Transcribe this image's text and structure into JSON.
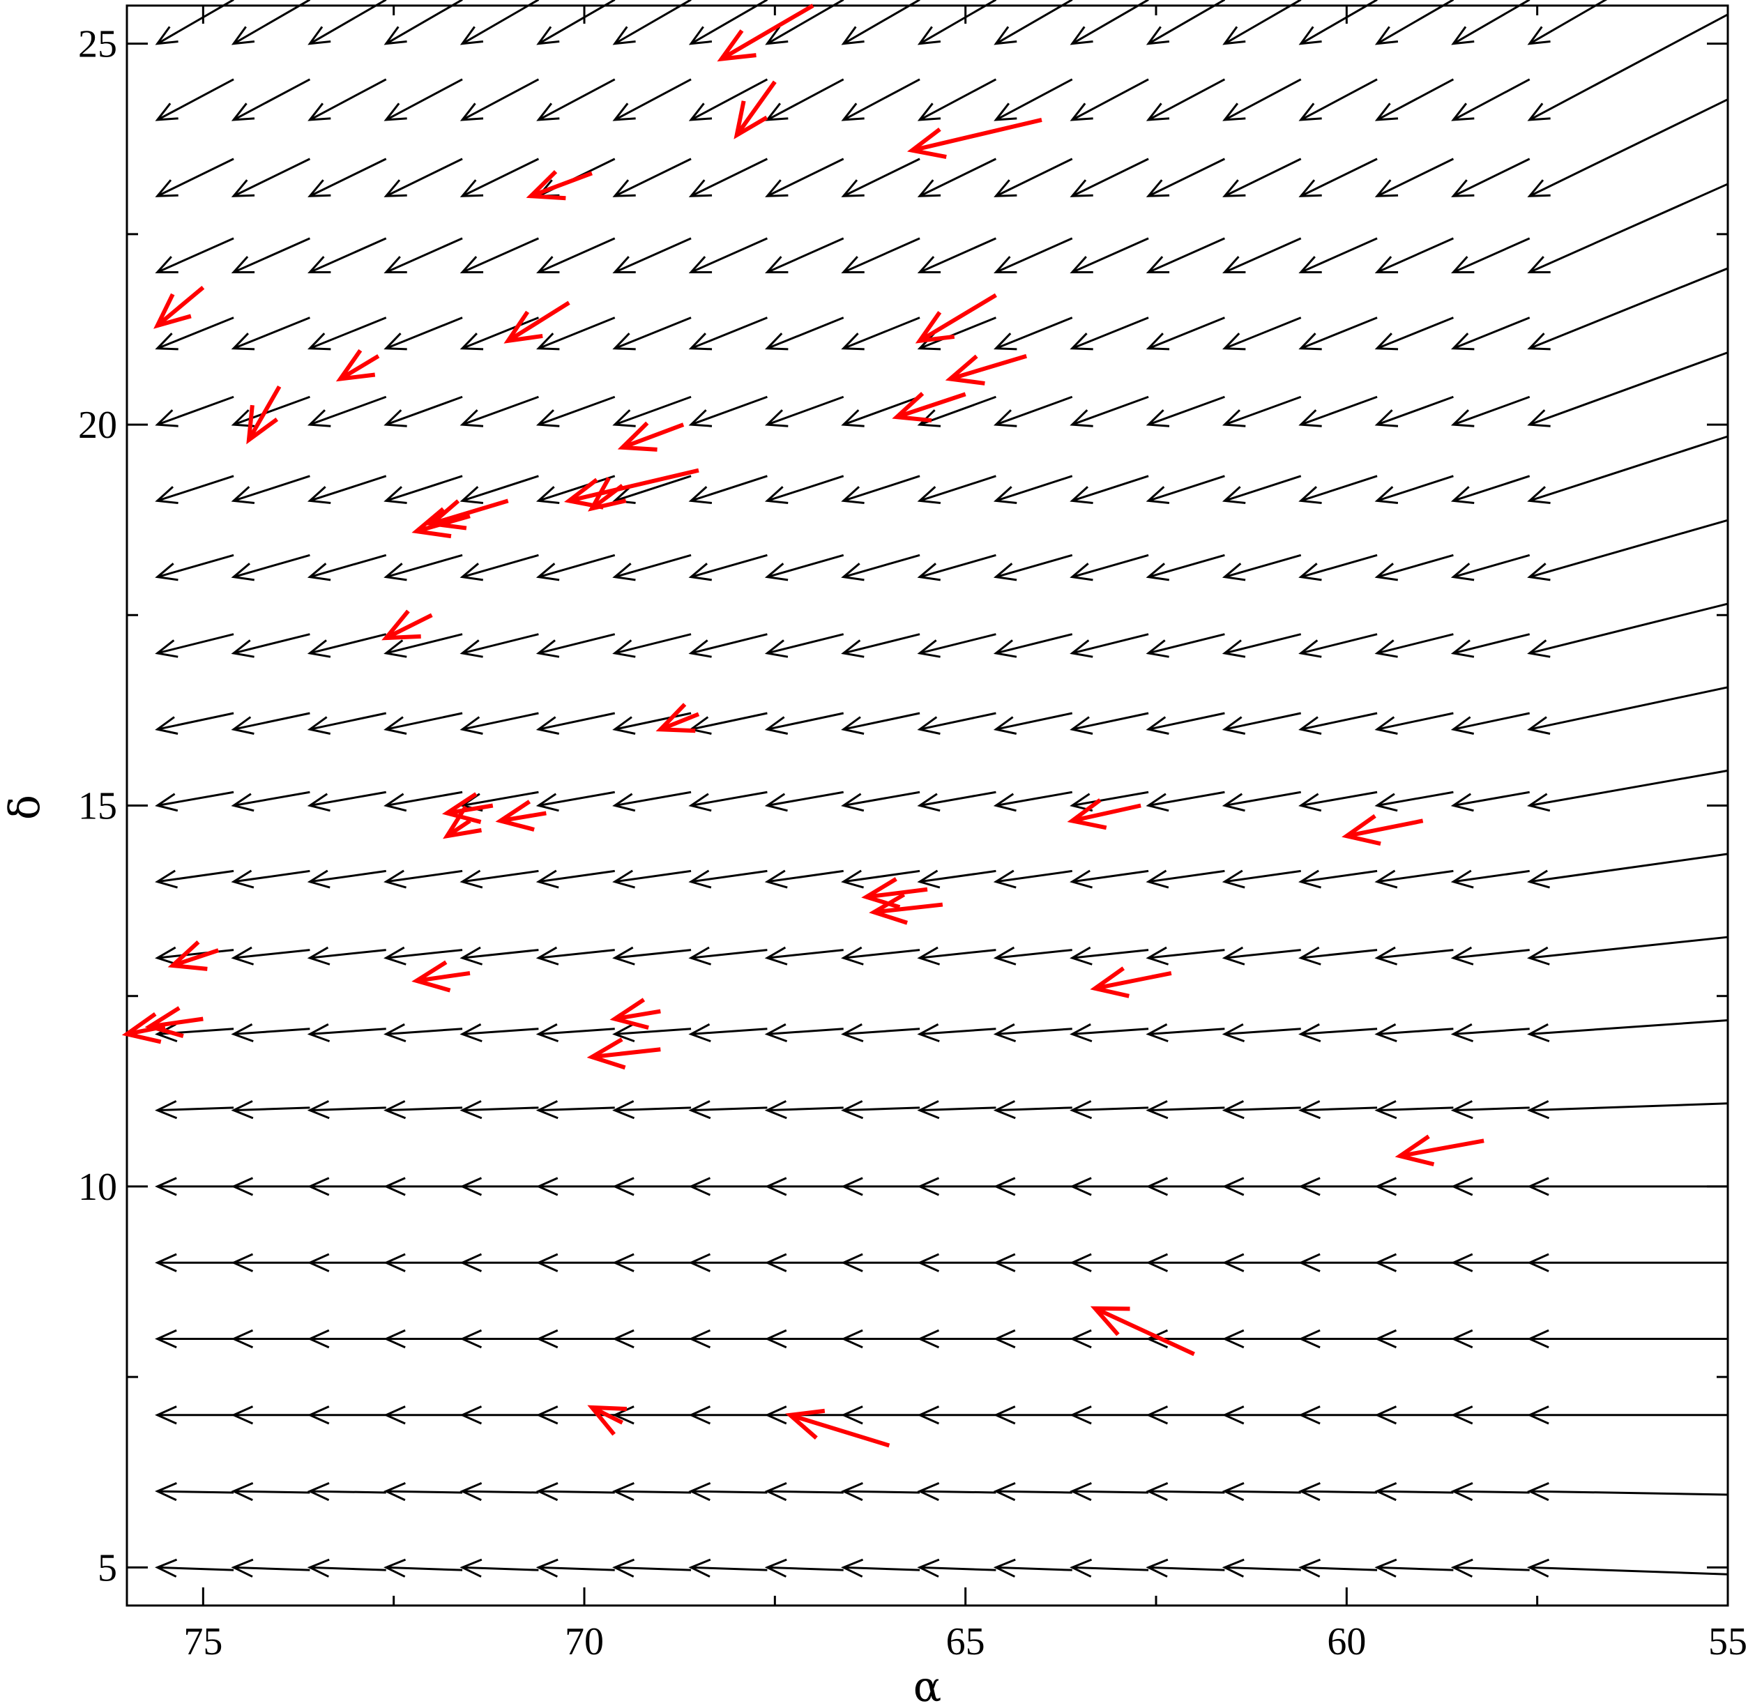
{
  "chart_data": {
    "type": "vector-field",
    "xlabel": "α",
    "ylabel": "δ",
    "xlim": [
      75,
      55
    ],
    "ylim": [
      5,
      25
    ],
    "x_reversed": true,
    "x_ticks": [
      75,
      70,
      65,
      60,
      55
    ],
    "x_tick_labels": [
      "75",
      "70",
      "65",
      "60",
      "55"
    ],
    "y_ticks": [
      5,
      10,
      15,
      20,
      25
    ],
    "y_tick_labels": [
      "5",
      "10",
      "15",
      "20",
      "25"
    ],
    "grid": false,
    "field_series": {
      "color": "#000000",
      "alpha_nodes": [
        75.6,
        74.6,
        73.6,
        72.6,
        71.6,
        70.6,
        69.6,
        68.6,
        67.6,
        66.6,
        65.6,
        64.6,
        63.6,
        62.6,
        61.6,
        60.6,
        59.6,
        58.6,
        57.6
      ],
      "delta_nodes": [
        25,
        24,
        23,
        22,
        21,
        20,
        19,
        18,
        17,
        16,
        15,
        14,
        13,
        12,
        11,
        10,
        9,
        8,
        7,
        6,
        5
      ],
      "tail_alpha": 55.0,
      "direction_deg_by_row": [
        30,
        28,
        26,
        24,
        22,
        20,
        18,
        16,
        14,
        12,
        10,
        8,
        6,
        4,
        2,
        0,
        0,
        0,
        0,
        -1,
        -2
      ]
    },
    "highlight_series": {
      "color": "#ff0000",
      "vectors": [
        {
          "tail": [
            67.0,
            25.5
          ],
          "head": [
            68.2,
            24.8
          ]
        },
        {
          "tail": [
            67.5,
            24.5
          ],
          "head": [
            68.0,
            23.8
          ]
        },
        {
          "tail": [
            64.0,
            24.0
          ],
          "head": [
            65.7,
            23.6
          ]
        },
        {
          "tail": [
            69.9,
            23.3
          ],
          "head": [
            70.7,
            23.0
          ]
        },
        {
          "tail": [
            75.0,
            21.8
          ],
          "head": [
            75.6,
            21.3
          ]
        },
        {
          "tail": [
            70.2,
            21.6
          ],
          "head": [
            71.0,
            21.1
          ]
        },
        {
          "tail": [
            64.6,
            21.7
          ],
          "head": [
            65.6,
            21.1
          ]
        },
        {
          "tail": [
            64.2,
            20.9
          ],
          "head": [
            65.2,
            20.6
          ]
        },
        {
          "tail": [
            72.7,
            20.9
          ],
          "head": [
            73.2,
            20.6
          ]
        },
        {
          "tail": [
            65.0,
            20.4
          ],
          "head": [
            65.9,
            20.1
          ]
        },
        {
          "tail": [
            74.0,
            20.5
          ],
          "head": [
            74.4,
            19.8
          ]
        },
        {
          "tail": [
            68.7,
            20.0
          ],
          "head": [
            69.5,
            19.7
          ]
        },
        {
          "tail": [
            68.5,
            19.4
          ],
          "head": [
            70.2,
            19.0
          ]
        },
        {
          "tail": [
            69.5,
            19.2
          ],
          "head": [
            69.9,
            18.9
          ]
        },
        {
          "tail": [
            71.0,
            19.0
          ],
          "head": [
            72.0,
            18.7
          ]
        },
        {
          "tail": [
            71.5,
            18.8
          ],
          "head": [
            72.2,
            18.6
          ]
        },
        {
          "tail": [
            72.0,
            17.5
          ],
          "head": [
            72.6,
            17.2
          ]
        },
        {
          "tail": [
            68.5,
            16.2
          ],
          "head": [
            69.0,
            16.0
          ]
        },
        {
          "tail": [
            71.2,
            15.0
          ],
          "head": [
            71.8,
            14.9
          ]
        },
        {
          "tail": [
            71.5,
            14.8
          ],
          "head": [
            71.8,
            14.6
          ]
        },
        {
          "tail": [
            70.5,
            14.9
          ],
          "head": [
            71.1,
            14.8
          ]
        },
        {
          "tail": [
            62.7,
            15.0
          ],
          "head": [
            63.6,
            14.8
          ]
        },
        {
          "tail": [
            59.0,
            14.8
          ],
          "head": [
            60.0,
            14.6
          ]
        },
        {
          "tail": [
            65.5,
            13.9
          ],
          "head": [
            66.3,
            13.8
          ]
        },
        {
          "tail": [
            65.3,
            13.7
          ],
          "head": [
            66.2,
            13.6
          ]
        },
        {
          "tail": [
            74.8,
            13.1
          ],
          "head": [
            75.4,
            12.9
          ]
        },
        {
          "tail": [
            71.5,
            12.8
          ],
          "head": [
            72.2,
            12.7
          ]
        },
        {
          "tail": [
            62.3,
            12.8
          ],
          "head": [
            63.3,
            12.6
          ]
        },
        {
          "tail": [
            75.0,
            12.2
          ],
          "head": [
            75.7,
            12.1
          ]
        },
        {
          "tail": [
            75.5,
            12.1
          ],
          "head": [
            76.0,
            12.0
          ]
        },
        {
          "tail": [
            69.0,
            12.3
          ],
          "head": [
            69.6,
            12.2
          ]
        },
        {
          "tail": [
            69.0,
            11.8
          ],
          "head": [
            69.9,
            11.7
          ]
        },
        {
          "tail": [
            58.2,
            10.6
          ],
          "head": [
            59.3,
            10.4
          ]
        },
        {
          "tail": [
            62.0,
            7.8
          ],
          "head": [
            63.3,
            8.4
          ]
        },
        {
          "tail": [
            69.5,
            6.9
          ],
          "head": [
            69.9,
            7.1
          ]
        },
        {
          "tail": [
            66.0,
            6.6
          ],
          "head": [
            67.3,
            7.0
          ]
        }
      ]
    }
  }
}
